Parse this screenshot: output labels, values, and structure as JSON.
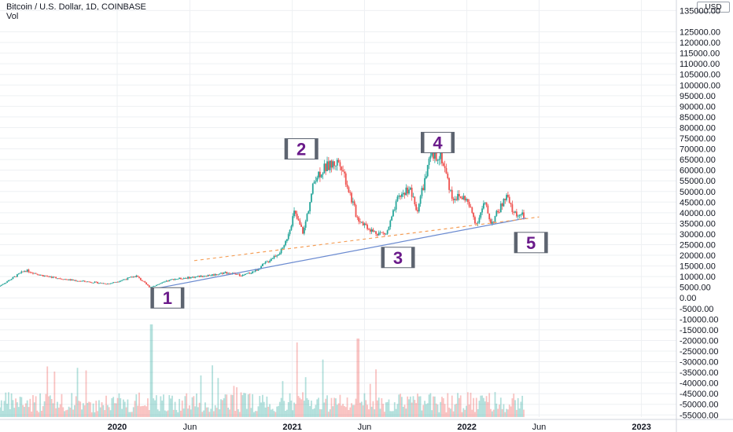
{
  "header": {
    "symbol_line": "Bitcoin / U.S. Dollar, 1D, COINBASE",
    "volume_label": "Vol"
  },
  "axis": {
    "currency_badge": "USD",
    "y_ticks": [
      "135000.00",
      "125000.00",
      "120000.00",
      "115000.00",
      "110000.00",
      "105000.00",
      "100000.00",
      "95000.00",
      "90000.00",
      "85000.00",
      "80000.00",
      "75000.00",
      "70000.00",
      "65000.00",
      "60000.00",
      "55000.00",
      "50000.00",
      "45000.00",
      "40000.00",
      "35000.00",
      "30000.00",
      "25000.00",
      "20000.00",
      "15000.00",
      "10000.00",
      "5000.00",
      "0.00",
      "-5000.00",
      "-10000.00",
      "-15000.00",
      "-20000.00",
      "-25000.00",
      "-30000.00",
      "-35000.00",
      "-40000.00",
      "-45000.00",
      "-50000.00",
      "-55000.00"
    ],
    "x_ticks": [
      {
        "label": "2020",
        "bold": true
      },
      {
        "label": "Jun",
        "bold": false
      },
      {
        "label": "2021",
        "bold": true
      },
      {
        "label": "Jun",
        "bold": false
      },
      {
        "label": "2022",
        "bold": true
      },
      {
        "label": "Jun",
        "bold": false
      },
      {
        "label": "2023",
        "bold": true
      }
    ]
  },
  "annotations": [
    {
      "text": "1",
      "date": "2020-04-15",
      "price": 0
    },
    {
      "text": "2",
      "date": "2021-01-20",
      "price": 70000
    },
    {
      "text": "3",
      "date": "2021-08-10",
      "price": 19000
    },
    {
      "text": "4",
      "date": "2021-11-01",
      "price": 73000
    },
    {
      "text": "5",
      "date": "2022-05-15",
      "price": 26000
    }
  ],
  "colors": {
    "up": "#26a69a",
    "down": "#ef5350",
    "trendline": "#6a8ad0",
    "channel_line": "#f5a05a",
    "label_text": "#6a1a8a",
    "grid": "#eef0f3"
  },
  "chart_data": {
    "type": "line",
    "title": "Bitcoin / U.S. Dollar, 1D, COINBASE",
    "series": [
      {
        "name": "",
        "x": [
          "2019-05-01",
          "2019-06-26",
          "2019-08-01",
          "2019-09-24",
          "2019-12-17",
          "2020-02-13",
          "2020-03-12",
          "2020-04-30",
          "2020-06-01",
          "2020-07-27",
          "2020-08-17",
          "2020-09-23",
          "2020-10-21",
          "2020-11-24",
          "2020-12-17",
          "2021-01-08",
          "2021-01-27",
          "2021-02-21",
          "2021-03-13",
          "2021-04-14",
          "2021-05-19",
          "2021-06-22",
          "2021-07-20",
          "2021-08-14",
          "2021-09-06",
          "2021-09-21",
          "2021-10-20",
          "2021-11-10",
          "2021-12-04",
          "2022-01-01",
          "2022-01-24",
          "2022-02-10",
          "2022-02-24",
          "2022-03-28",
          "2022-04-11",
          "2022-04-30"
        ],
        "values": [
          5300,
          13000,
          10500,
          8500,
          6600,
          10300,
          5000,
          8800,
          9500,
          11000,
          12000,
          10500,
          13000,
          19000,
          23000,
          40000,
          30500,
          57000,
          61000,
          64500,
          38000,
          31000,
          30000,
          47000,
          52000,
          40500,
          65500,
          68000,
          47500,
          47000,
          35000,
          44500,
          35000,
          47500,
          40000,
          38500
        ]
      }
    ],
    "trendlines": [
      {
        "name": "",
        "style": "solid",
        "from": {
          "date": "2020-03-12",
          "price": 4000
        },
        "to": {
          "date": "2022-05-05",
          "price": 37500
        }
      },
      {
        "name": "",
        "style": "dashed",
        "from": {
          "date": "2020-06-10",
          "price": 17500
        },
        "to": {
          "date": "2022-06-01",
          "price": 38000
        }
      }
    ],
    "xlabel": "",
    "ylabel": "",
    "x_range": [
      "2019-05-01",
      "2023-03-15"
    ],
    "y_range": [
      -56000,
      137000
    ],
    "volume_panel": true,
    "grid": true
  }
}
